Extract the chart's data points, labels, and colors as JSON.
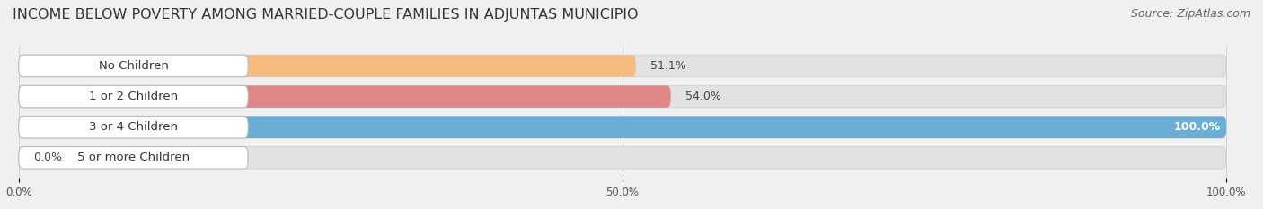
{
  "title": "INCOME BELOW POVERTY AMONG MARRIED-COUPLE FAMILIES IN ADJUNTAS MUNICIPIO",
  "source": "Source: ZipAtlas.com",
  "categories": [
    "No Children",
    "1 or 2 Children",
    "3 or 4 Children",
    "5 or more Children"
  ],
  "values": [
    51.1,
    54.0,
    100.0,
    0.0
  ],
  "bar_colors": [
    "#f5bc7e",
    "#e08888",
    "#6aaed6",
    "#c5b0dc"
  ],
  "background_color": "#f0f0f0",
  "bar_background_color": "#e2e2e2",
  "xtick_labels": [
    "0.0%",
    "50.0%",
    "100.0%"
  ],
  "title_fontsize": 11.5,
  "source_fontsize": 9,
  "label_fontsize": 9.5,
  "value_fontsize": 9
}
